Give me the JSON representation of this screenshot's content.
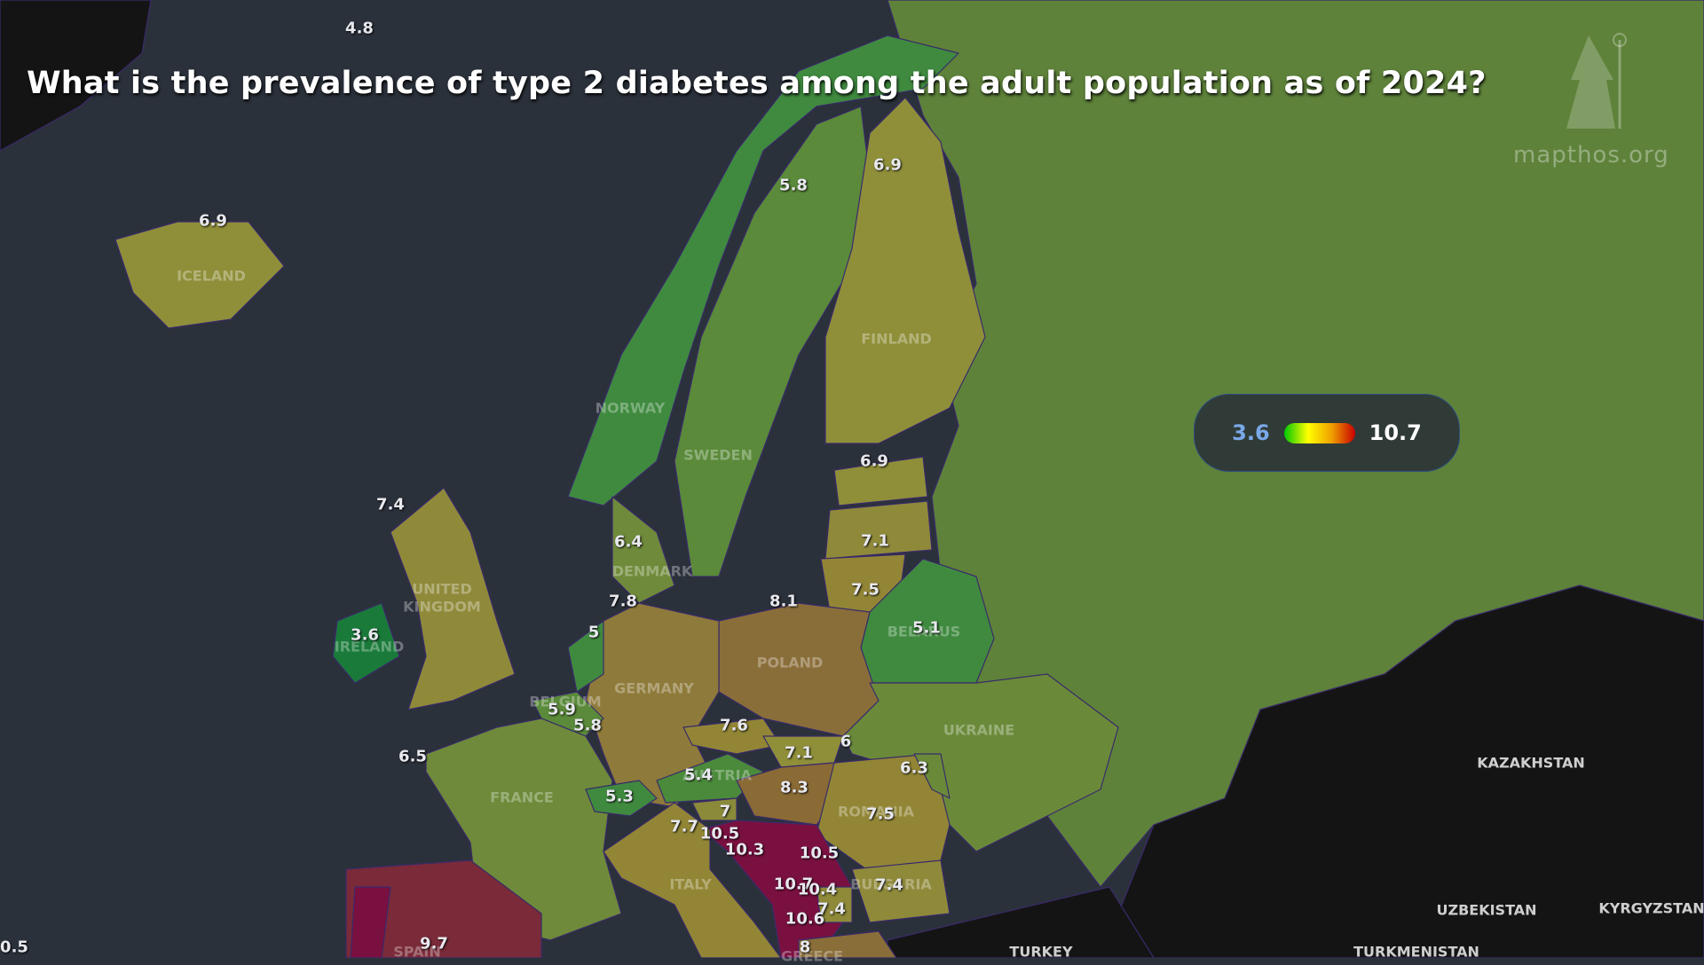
{
  "title": "What is the prevalence of type 2 diabetes among the adult population as of 2024?",
  "brand": {
    "text": "mapthos.org",
    "logo_icon": "wizard-icon"
  },
  "legend": {
    "min": "3.6",
    "max": "10.7",
    "gradient": [
      "#00c800",
      "#ffff00",
      "#f0a000",
      "#c80000"
    ]
  },
  "colors": {
    "sea": "#2b313b",
    "no_data": "#141414",
    "low": "#1a7a3a",
    "mid": "#5e8a3a",
    "high": "#7a1040"
  },
  "values": [
    "4.8",
    "6.9",
    "5.8",
    "6.9",
    "6.9",
    "7.1",
    "7.5",
    "5.1",
    "8.1",
    "7.4",
    "3.6",
    "6.4",
    "7.8",
    "5",
    "5.9",
    "5.8",
    "7.6",
    "7.1",
    "6",
    "5.4",
    "8.3",
    "6.3",
    "5.3",
    "6.5",
    "7",
    "7.7",
    "10.5",
    "10.3",
    "10.5",
    "7.5",
    "7.4",
    "10.7",
    "10.4",
    "7.4",
    "10.6",
    "8",
    "9.7",
    "0.5"
  ],
  "countries": [
    "ICELAND",
    "NORWAY",
    "SWEDEN",
    "FINLAND",
    "BELARUS",
    "POLAND",
    "UNITED",
    "KINGDOM",
    "IRELAND",
    "DENMARK",
    "GERMANY",
    "BELGIUM",
    "AUSTRIA",
    "UKRAINE",
    "FRANCE",
    "ROMANIA",
    "ITALY",
    "BULGARIA",
    "GREECE",
    "SPAIN",
    "TURKEY",
    "KAZAKHSTAN",
    "UZBEKISTAN",
    "TURKMENISTAN",
    "KYRGYZSTAN"
  ]
}
